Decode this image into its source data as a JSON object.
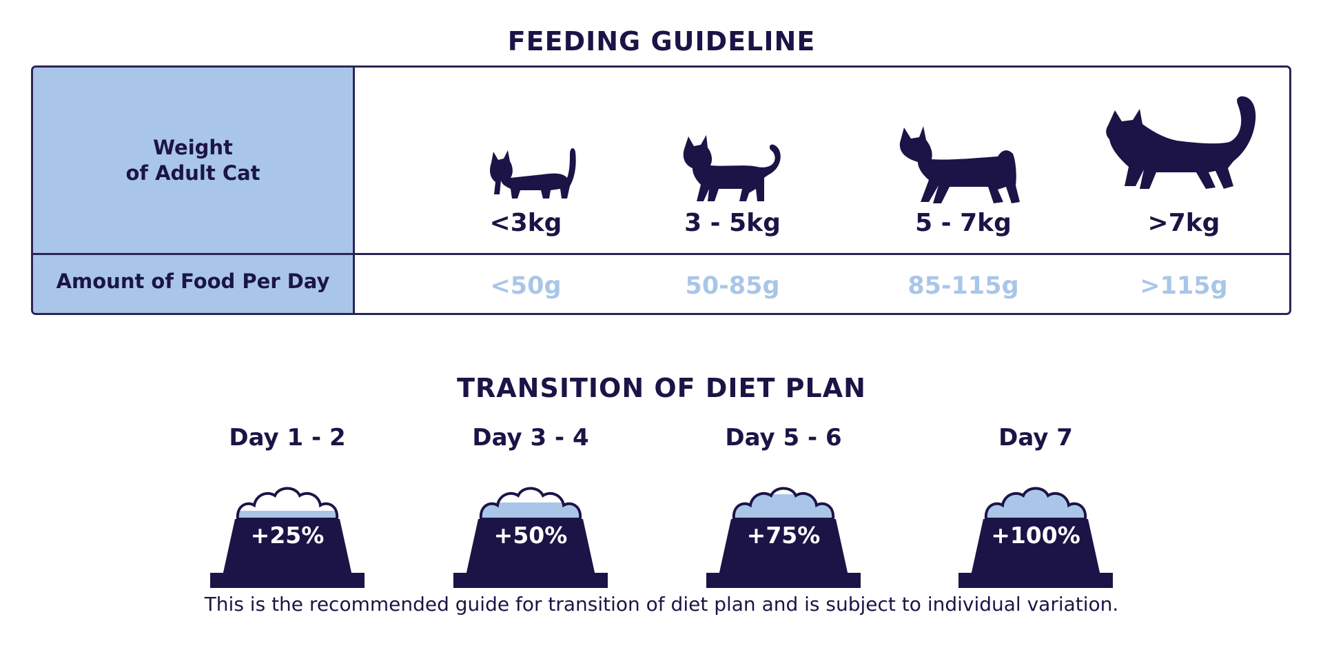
{
  "feeding": {
    "title": "FEEDING GUIDELINE",
    "weight_label_line1": "Weight",
    "weight_label_line2": "of Adult Cat",
    "food_label": "Amount of Food Per Day",
    "columns": [
      {
        "weight": "<3kg",
        "amount": "<50g",
        "icon": "small-cat-icon"
      },
      {
        "weight": "3 - 5kg",
        "amount": "50-85g",
        "icon": "medium-cat-icon"
      },
      {
        "weight": "5 - 7kg",
        "amount": "85-115g",
        "icon": "large-cat-icon"
      },
      {
        "weight": ">7kg",
        "amount": ">115g",
        "icon": "fluffy-cat-icon"
      }
    ]
  },
  "transition": {
    "title": "TRANSITION OF DIET PLAN",
    "stages": [
      {
        "day": "Day 1 - 2",
        "percent": "+25%",
        "fill_fraction": 0.25
      },
      {
        "day": "Day 3 - 4",
        "percent": "+50%",
        "fill_fraction": 0.5
      },
      {
        "day": "Day 5 - 6",
        "percent": "+75%",
        "fill_fraction": 0.75
      },
      {
        "day": "Day 7",
        "percent": "+100%",
        "fill_fraction": 1.0
      }
    ],
    "footnote": "This is the recommended guide for transition of diet plan and is subject to individual variation."
  },
  "colors": {
    "navy": "#1c1446",
    "light_blue": "#a9c6e8",
    "border": "#2b2356"
  }
}
